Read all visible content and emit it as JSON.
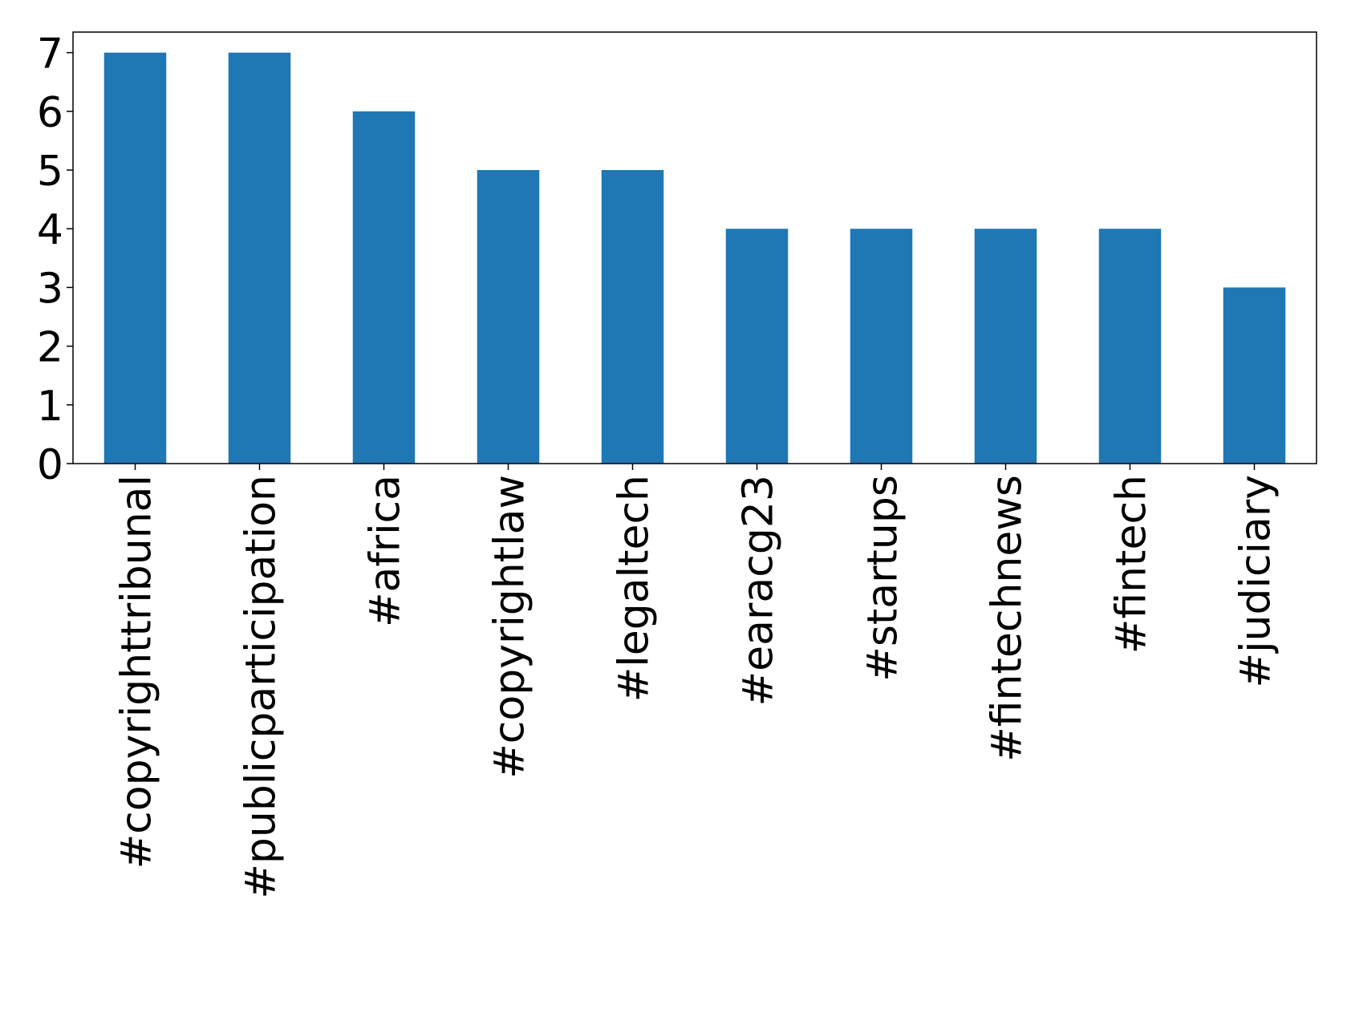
{
  "chart_data": {
    "type": "bar",
    "categories": [
      "#copyrighttribunal",
      "#publicparticipation",
      "#africa",
      "#copyrightlaw",
      "#legaltech",
      "#earacg23",
      "#startups",
      "#fintechnews",
      "#fintech",
      "#judiciary"
    ],
    "values": [
      7,
      7,
      6,
      5,
      5,
      4,
      4,
      4,
      4,
      3
    ],
    "color": "#1f77b4",
    "ylim": [
      0,
      7.35
    ],
    "yticks": [
      0,
      1,
      2,
      3,
      4,
      5,
      6,
      7
    ],
    "grid": false
  }
}
